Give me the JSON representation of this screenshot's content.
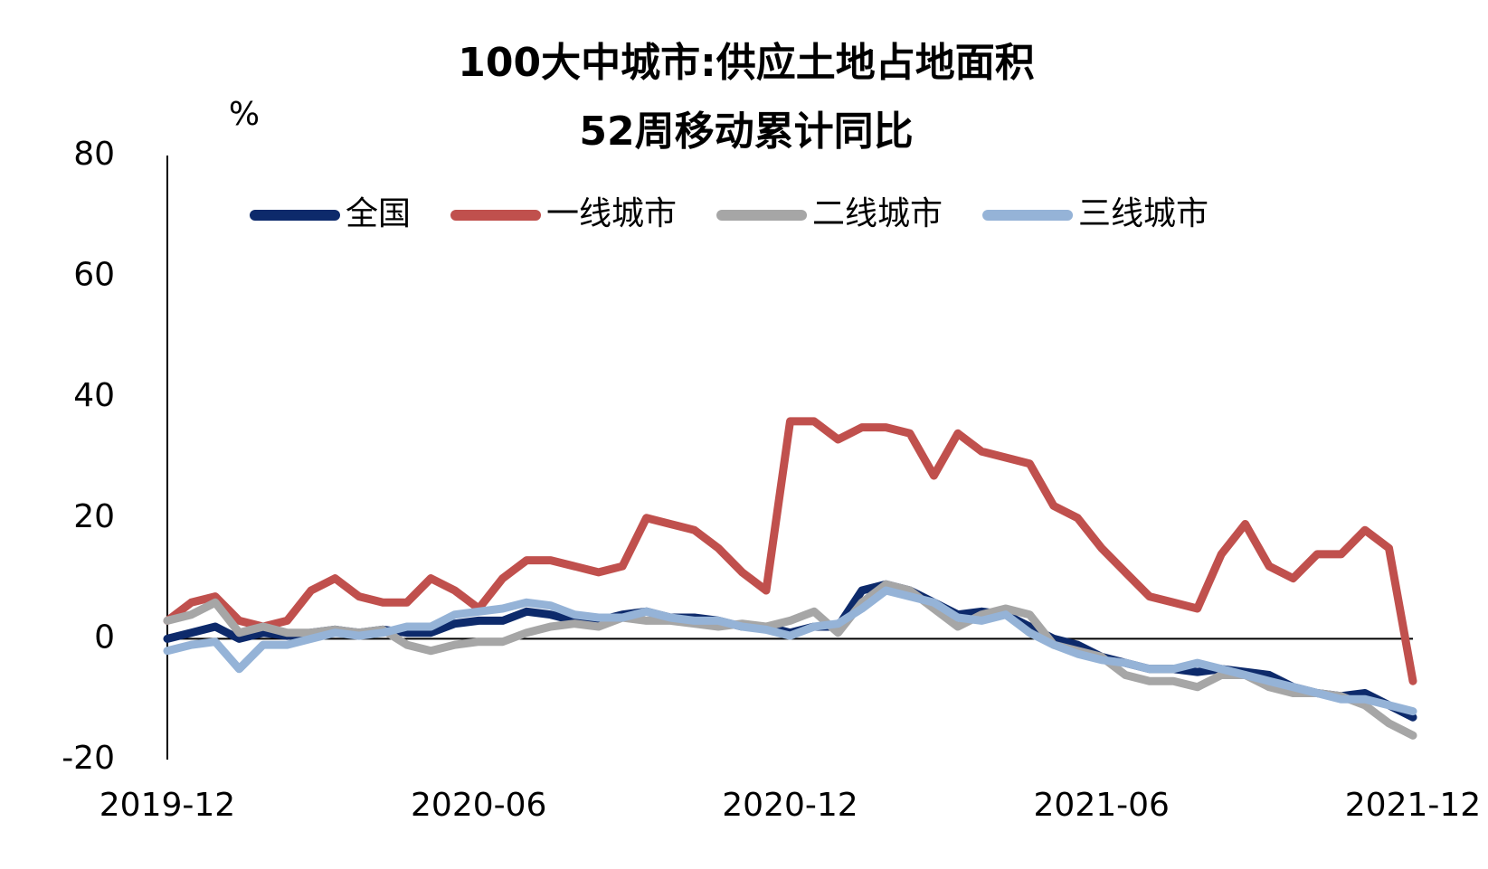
{
  "chart_data": {
    "type": "line",
    "title": [
      "100大中城市:供应土地占地面积",
      "52周移动累计同比"
    ],
    "y_label": "%",
    "categories": [
      "2019-12",
      null,
      null,
      null,
      null,
      null,
      null,
      null,
      null,
      null,
      null,
      null,
      null,
      "2020-06",
      null,
      null,
      null,
      null,
      null,
      null,
      null,
      null,
      null,
      null,
      null,
      null,
      "2020-12",
      null,
      null,
      null,
      null,
      null,
      null,
      null,
      null,
      null,
      null,
      null,
      null,
      "2021-06",
      null,
      null,
      null,
      null,
      null,
      null,
      null,
      null,
      null,
      null,
      null,
      null,
      "2021-12"
    ],
    "ylim": [
      -20,
      80
    ],
    "yticks": [
      -20,
      0,
      20,
      40,
      60,
      80
    ],
    "grid": false,
    "legend": "top",
    "series": [
      {
        "name": "全国",
        "color": "#0d2a6b",
        "values": [
          0,
          1,
          2,
          0,
          1,
          0.5,
          1,
          1.5,
          1,
          1.5,
          1,
          1,
          2.5,
          3,
          3,
          4.5,
          4,
          3,
          3,
          4,
          4.5,
          3.5,
          3.5,
          3,
          2,
          2,
          1,
          2,
          2,
          8,
          9,
          8,
          6,
          4,
          4.5,
          4,
          2,
          0,
          -1,
          -3,
          -4,
          -5,
          -5,
          -5.5,
          -5,
          -5.5,
          -6,
          -8,
          -9,
          -9.5,
          -9,
          -11,
          -13
        ]
      },
      {
        "name": "一线城市",
        "color": "#c0504d",
        "values": [
          3,
          6,
          7,
          3,
          2,
          3,
          8,
          10,
          7,
          6,
          6,
          10,
          8,
          5,
          10,
          13,
          13,
          12,
          11,
          12,
          20,
          19,
          18,
          15,
          11,
          8,
          36,
          36,
          33,
          35,
          35,
          34,
          27,
          34,
          31,
          30,
          29,
          22,
          20,
          15,
          11,
          7,
          6,
          5,
          14,
          19,
          12,
          10,
          14,
          14,
          18,
          15,
          -7
        ]
      },
      {
        "name": "二线城市",
        "color": "#a6a6a6",
        "values": [
          3,
          4,
          6,
          1,
          2,
          1,
          1,
          1.5,
          1,
          1.5,
          -1,
          -2,
          -1,
          -0.5,
          -0.5,
          1,
          2,
          2.5,
          2,
          3.5,
          3,
          3,
          2.5,
          2,
          2.5,
          2,
          3,
          4.5,
          1,
          6,
          9,
          8,
          5,
          2,
          4,
          5,
          4,
          -1,
          -2,
          -3,
          -6,
          -7,
          -7,
          -8,
          -6,
          -6,
          -8,
          -9,
          -9,
          -9.5,
          -11,
          -14,
          -16
        ]
      },
      {
        "name": "三线城市",
        "color": "#95b3d7",
        "values": [
          -2,
          -1,
          -0.5,
          -5,
          -1,
          -1,
          0,
          1,
          0.5,
          1,
          2,
          2,
          4,
          4.5,
          5,
          6,
          5.5,
          4,
          3.5,
          3.5,
          4.5,
          3.5,
          3,
          3,
          2,
          1.5,
          0.5,
          2,
          2.5,
          5,
          8,
          7,
          6,
          3.5,
          3,
          4,
          1,
          -1,
          -2.5,
          -3.5,
          -4,
          -5,
          -5,
          -4,
          -5,
          -6,
          -7,
          -8,
          -9,
          -10,
          -10,
          -11,
          -12
        ]
      }
    ]
  }
}
